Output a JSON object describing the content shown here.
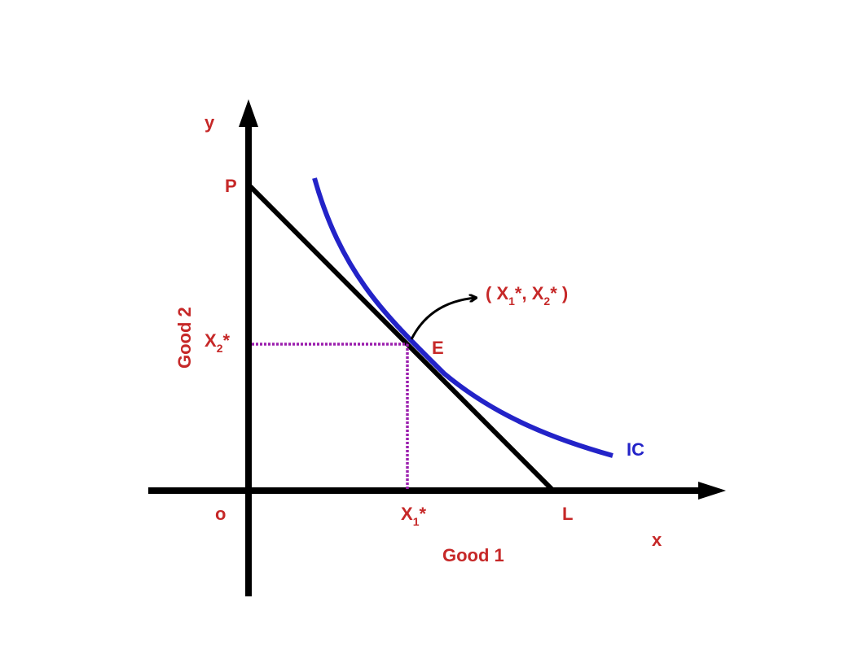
{
  "diagram": {
    "axis_labels": {
      "x": "x",
      "y": "y",
      "origin": "o"
    },
    "axis_titles": {
      "x": "Good 1",
      "y": "Good 2"
    },
    "intercepts": {
      "y": "P",
      "x": "L"
    },
    "curve_label": "IC",
    "point_label": "E",
    "x_star": {
      "main": "X",
      "sub": "1",
      "suffix": "*"
    },
    "y_star": {
      "main": "X",
      "sub": "2",
      "suffix": "*"
    },
    "coordinate": {
      "open": "( X",
      "sub1": "1",
      "mid": "*, X",
      "sub2": "2",
      "close": "* )"
    },
    "colors": {
      "axes": "#000000",
      "budget_line": "#000000",
      "indifference_curve": "#2323c8",
      "guide_lines": "#9b1fae",
      "labels": "#c62828"
    }
  }
}
